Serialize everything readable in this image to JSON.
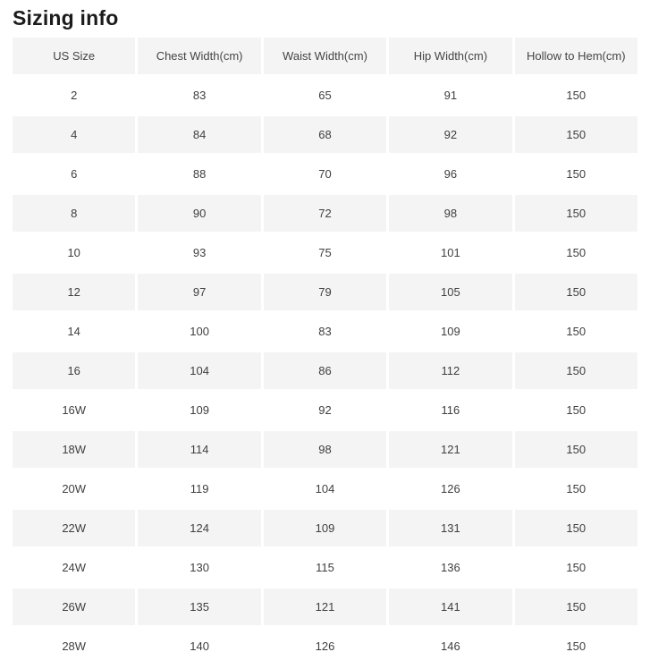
{
  "header": {
    "title": "Sizing info"
  },
  "colors": {
    "stripe_bg": "#f4f4f4",
    "header_bg": "#f4f4f4",
    "cell_text": "#3f3f3f",
    "title_text": "#1b1b1b",
    "page_bg": "#ffffff"
  },
  "chart_data": {
    "type": "table",
    "title": "Sizing info",
    "columns": [
      "US Size",
      "Chest Width(cm)",
      "Waist Width(cm)",
      "Hip Width(cm)",
      "Hollow to Hem(cm)"
    ],
    "rows": [
      [
        "2",
        "83",
        "65",
        "91",
        "150"
      ],
      [
        "4",
        "84",
        "68",
        "92",
        "150"
      ],
      [
        "6",
        "88",
        "70",
        "96",
        "150"
      ],
      [
        "8",
        "90",
        "72",
        "98",
        "150"
      ],
      [
        "10",
        "93",
        "75",
        "101",
        "150"
      ],
      [
        "12",
        "97",
        "79",
        "105",
        "150"
      ],
      [
        "14",
        "100",
        "83",
        "109",
        "150"
      ],
      [
        "16",
        "104",
        "86",
        "112",
        "150"
      ],
      [
        "16W",
        "109",
        "92",
        "116",
        "150"
      ],
      [
        "18W",
        "114",
        "98",
        "121",
        "150"
      ],
      [
        "20W",
        "119",
        "104",
        "126",
        "150"
      ],
      [
        "22W",
        "124",
        "109",
        "131",
        "150"
      ],
      [
        "24W",
        "130",
        "115",
        "136",
        "150"
      ],
      [
        "26W",
        "135",
        "121",
        "141",
        "150"
      ],
      [
        "28W",
        "140",
        "126",
        "146",
        "150"
      ]
    ],
    "layout": {
      "zebra_striping": true,
      "striped_rows": "even",
      "cell_alignment": "center",
      "grid": "off"
    }
  }
}
